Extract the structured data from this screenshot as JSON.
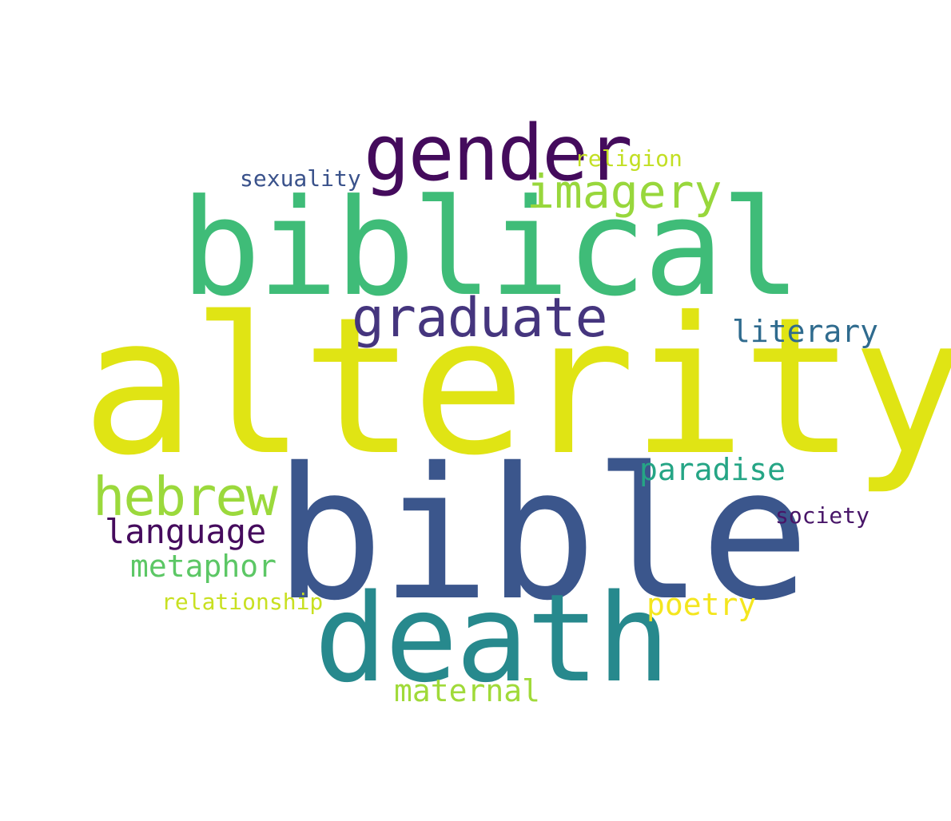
{
  "words": [
    {
      "key": "alterity",
      "text": "alterity",
      "color": "#e0e414"
    },
    {
      "key": "bible",
      "text": "bible",
      "color": "#3b568c"
    },
    {
      "key": "biblical",
      "text": "biblical",
      "color": "#3fbc78"
    },
    {
      "key": "death",
      "text": "death",
      "color": "#27898d"
    },
    {
      "key": "gender",
      "text": "gender",
      "color": "#440b5c"
    },
    {
      "key": "graduate",
      "text": "graduate",
      "color": "#45357e"
    },
    {
      "key": "imagery",
      "text": "imagery",
      "color": "#98d73c"
    },
    {
      "key": "hebrew",
      "text": "hebrew",
      "color": "#9bd93c"
    },
    {
      "key": "language",
      "text": "language",
      "color": "#450b5d"
    },
    {
      "key": "metaphor",
      "text": "metaphor",
      "color": "#5cc765"
    },
    {
      "key": "paradise",
      "text": "paradise",
      "color": "#25a585"
    },
    {
      "key": "literary",
      "text": "literary",
      "color": "#2f6b8e"
    },
    {
      "key": "poetry",
      "text": "poetry",
      "color": "#f4e61e"
    },
    {
      "key": "maternal",
      "text": "maternal",
      "color": "#a0da39"
    },
    {
      "key": "relationship",
      "text": "relationship",
      "color": "#c8e021"
    },
    {
      "key": "society",
      "text": "society",
      "color": "#481568"
    },
    {
      "key": "sexuality",
      "text": "sexuality",
      "color": "#3a528b"
    },
    {
      "key": "religion",
      "text": "religion",
      "color": "#c2df23"
    }
  ]
}
